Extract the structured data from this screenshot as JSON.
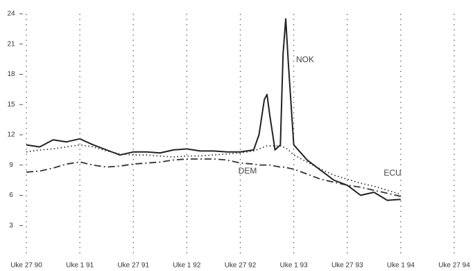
{
  "chart_data": {
    "type": "line",
    "x": [
      0,
      0.25,
      0.5,
      0.75,
      1,
      1.25,
      1.5,
      1.75,
      2,
      2.25,
      2.5,
      2.75,
      3,
      3.25,
      3.5,
      3.75,
      4,
      4.25,
      4.35,
      4.45,
      4.5,
      4.55,
      4.65,
      4.75,
      4.8,
      4.85,
      4.9,
      5,
      5.25,
      5.5,
      5.75,
      6,
      6.25,
      6.5,
      6.75,
      7
    ],
    "series": [
      {
        "name": "NOK",
        "color": "#222222",
        "style": "solid",
        "values": [
          11,
          10.8,
          11.5,
          11.3,
          11.6,
          11,
          10.5,
          10,
          10.3,
          10.3,
          10.2,
          10.5,
          10.6,
          10.4,
          10.4,
          10.3,
          10.3,
          10.5,
          12,
          15.5,
          16,
          14,
          10.5,
          11,
          20,
          23.5,
          19,
          11,
          9.5,
          8.5,
          7.5,
          7,
          6,
          6.3,
          5.5,
          5.6
        ]
      },
      {
        "name": "ECU",
        "color": "#333333",
        "style": "dotted",
        "values": [
          10.3,
          10.5,
          10.6,
          10.8,
          11,
          10.8,
          10.4,
          10.1,
          10,
          10,
          9.9,
          9.8,
          9.9,
          9.9,
          10,
          10.1,
          10.2,
          10.4,
          10.6,
          10.8,
          10.9,
          10.9,
          10.9,
          10.9,
          10.8,
          10.7,
          10.5,
          10,
          9.3,
          8.6,
          8,
          7.6,
          7.2,
          6.9,
          6.5,
          6.1
        ]
      },
      {
        "name": "DEM",
        "color": "#333333",
        "style": "dashdot",
        "values": [
          8.3,
          8.4,
          8.7,
          9.1,
          9.3,
          9,
          8.8,
          8.9,
          9.1,
          9.2,
          9.3,
          9.5,
          9.6,
          9.6,
          9.6,
          9.5,
          9.2,
          9.1,
          9,
          9,
          9,
          9,
          8.9,
          8.8,
          8.8,
          8.8,
          8.7,
          8.6,
          8.1,
          7.6,
          7.3,
          7,
          6.8,
          6.5,
          6.2,
          5.9
        ]
      }
    ],
    "xlim": [
      0,
      8
    ],
    "xticks": [
      {
        "value": 0,
        "label": "Uke 27 90"
      },
      {
        "value": 1,
        "label": "Uke 1 91"
      },
      {
        "value": 2,
        "label": "Uke 27 91"
      },
      {
        "value": 3,
        "label": "Uke 1 92"
      },
      {
        "value": 4,
        "label": "Uke 27 92"
      },
      {
        "value": 5,
        "label": "Uke 1 93"
      },
      {
        "value": 6,
        "label": "Uke 27 93"
      },
      {
        "value": 7,
        "label": "Uke 1 94"
      },
      {
        "value": 8,
        "label": "Uke 27 94"
      }
    ],
    "ylim": [
      0,
      24
    ],
    "yticks": [
      3,
      6,
      9,
      12,
      15,
      18,
      21,
      24
    ],
    "grid": true
  }
}
